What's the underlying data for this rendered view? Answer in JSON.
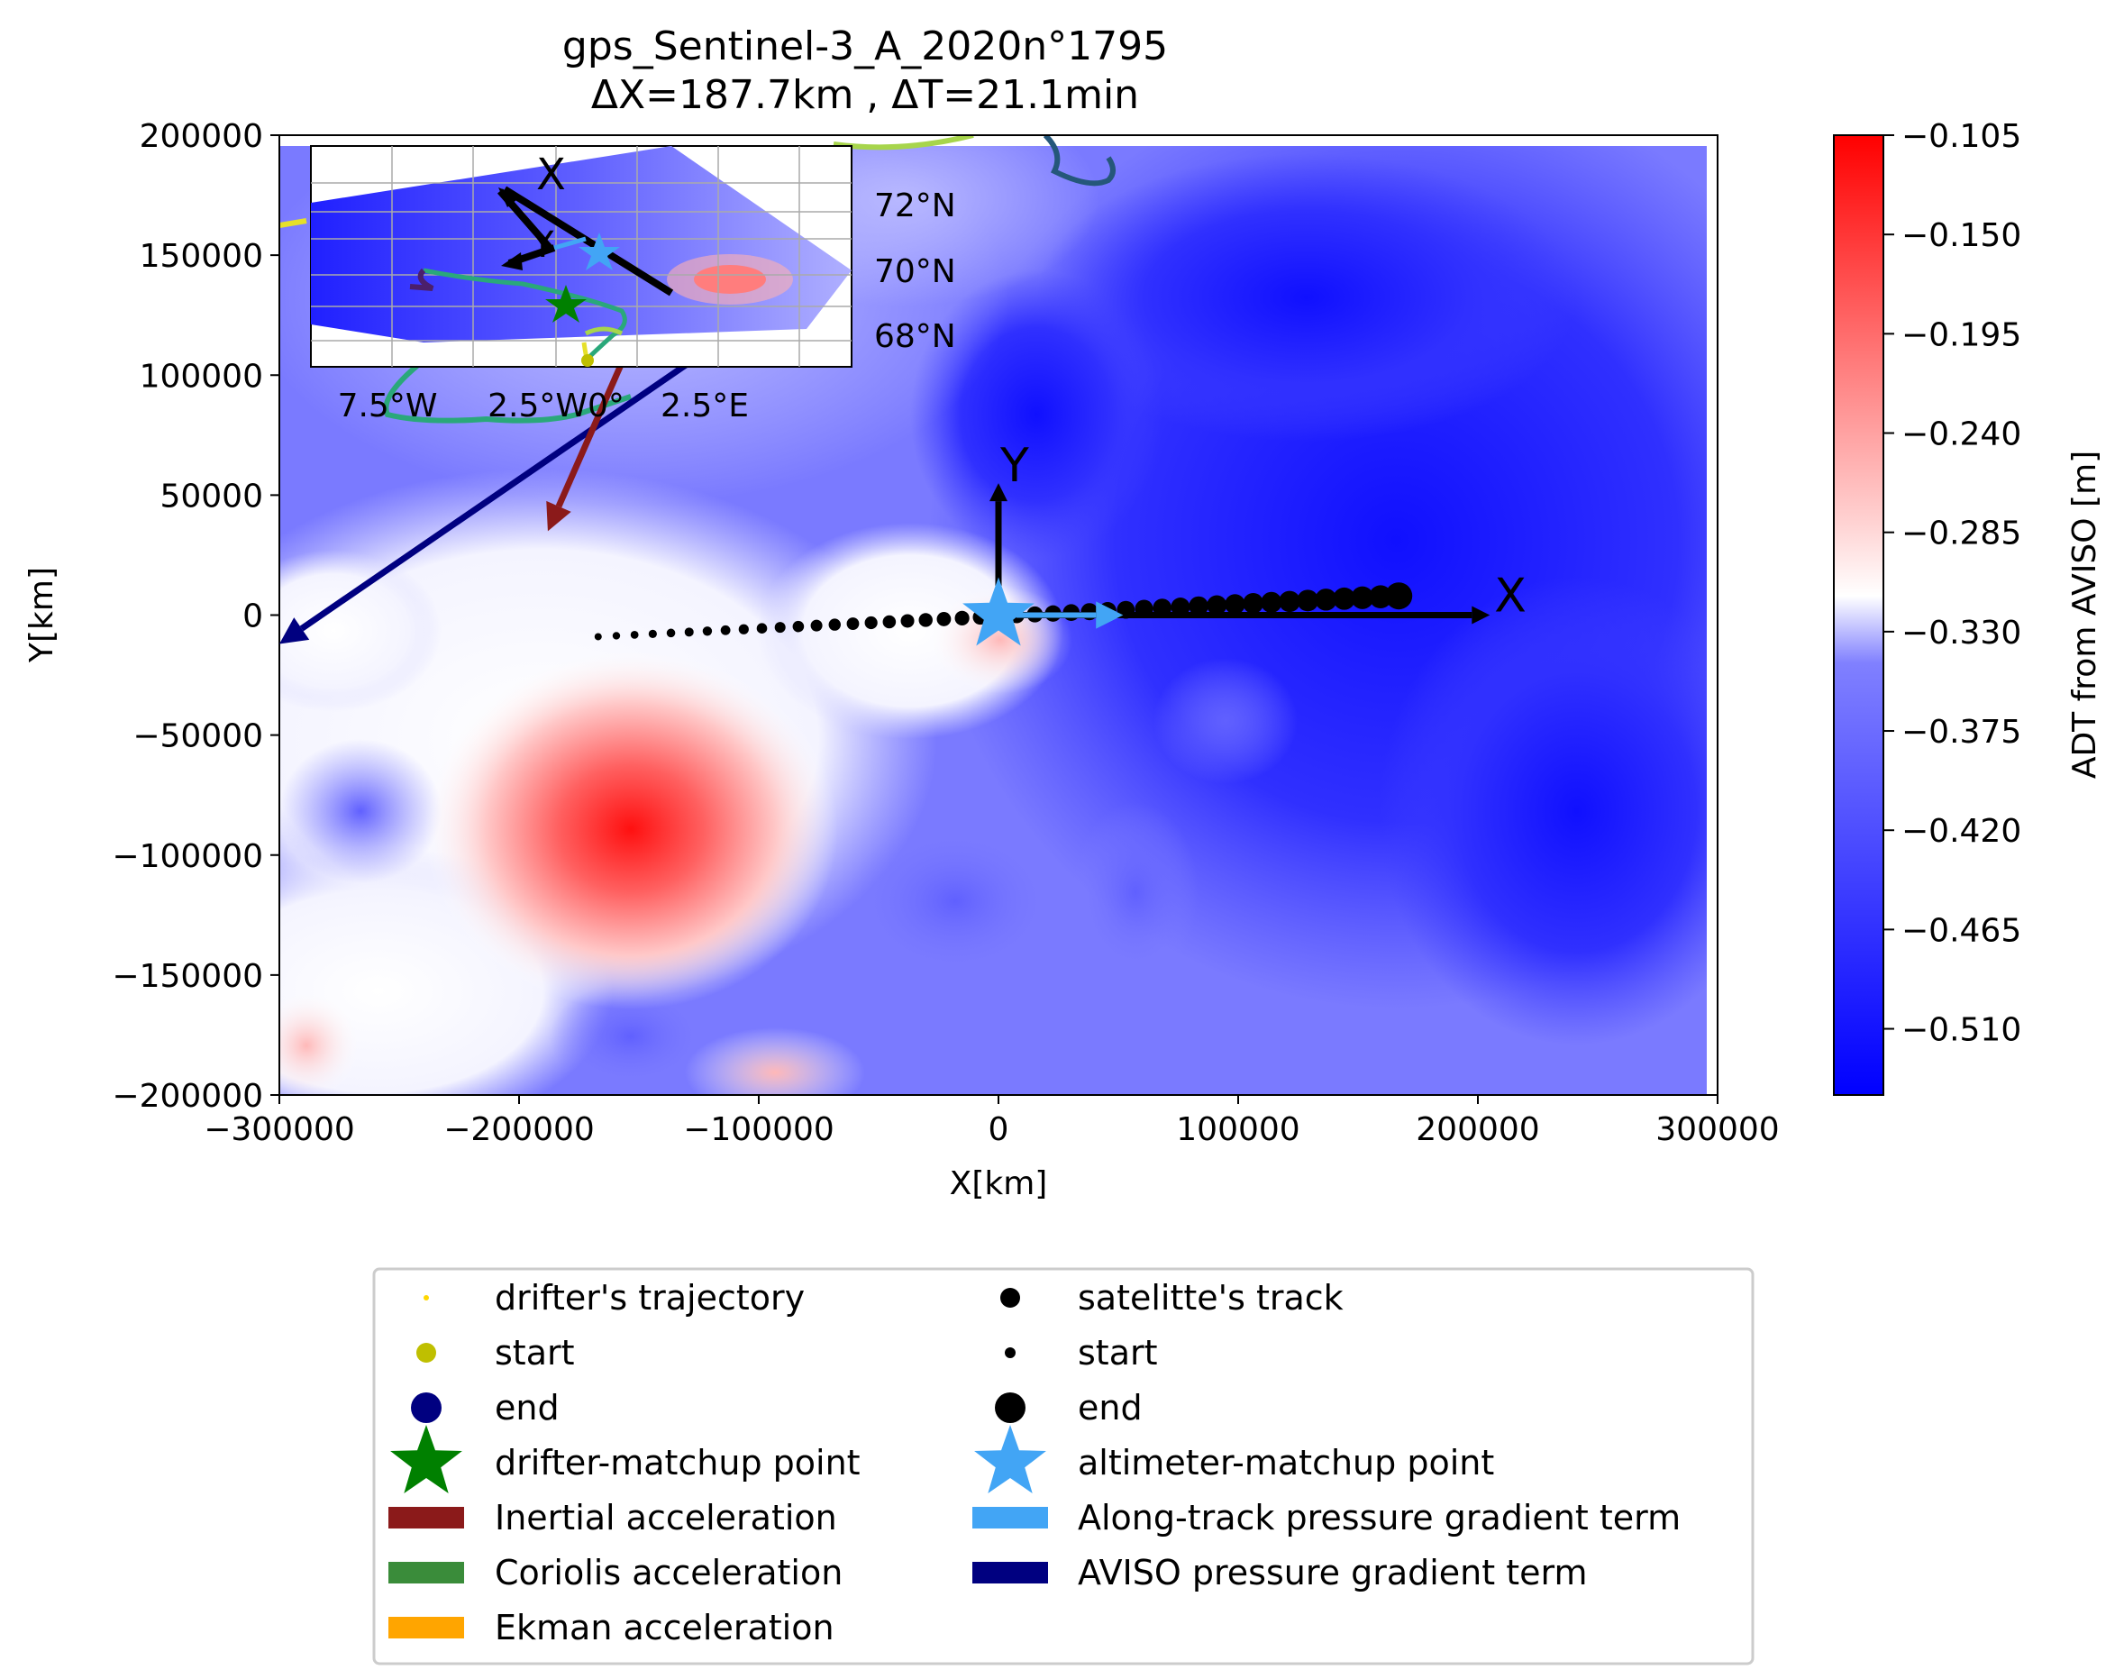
{
  "chart_data": {
    "type": "contour",
    "title": "gps_Sentinel-3_A_2020n°1795",
    "subtitle": "ΔX=187.7km , ΔT=21.1min",
    "xlabel": "X[km]",
    "ylabel": "Y[km]",
    "xlim": [
      -300000,
      300000
    ],
    "ylim": [
      -200000,
      200000
    ],
    "xticks": [
      "−300000",
      "−200000",
      "−100000",
      "0",
      "100000",
      "200000",
      "300000"
    ],
    "yticks": [
      "200000",
      "150000",
      "100000",
      "50000",
      "0",
      "−50000",
      "−100000",
      "−150000",
      "−200000"
    ],
    "colorbar": {
      "label": "ADT from AVISO [m]",
      "range": [
        -0.54,
        -0.105
      ],
      "ticks": [
        "−0.105",
        "−0.150",
        "−0.195",
        "−0.240",
        "−0.285",
        "−0.330",
        "−0.375",
        "−0.420",
        "−0.465",
        "−0.510"
      ],
      "colors": {
        "low": "#0000ff",
        "mid": "#ffffff",
        "high": "#ff0000"
      }
    },
    "features": {
      "warm_eddy_center": {
        "x": -150000,
        "y": -95000
      },
      "small_warm_patch_center": {
        "x": 5000,
        "y": -15000
      },
      "cold_core": {
        "x": 200000,
        "y": 50000
      }
    },
    "satellite_track": {
      "start": {
        "x": -167000,
        "y": -9000
      },
      "end": {
        "x": 167000,
        "y": 8000
      },
      "n_points": 45
    },
    "axes_arrows": {
      "origin": {
        "x": 0,
        "y": 0
      },
      "x_end": {
        "x": 205000,
        "y": 0
      },
      "y_end": {
        "x": 0,
        "y": 55000
      },
      "x_label": "X",
      "y_label": "Y"
    },
    "altimeter_matchup": {
      "x": 0,
      "y": 0
    },
    "vectors": [
      {
        "name": "Along-track pressure gradient term",
        "color": "#42a5f5",
        "from": {
          "x": 0,
          "y": 0
        },
        "to": {
          "x": 52000,
          "y": 0
        }
      },
      {
        "name": "AVISO pressure gradient term",
        "color": "#000080",
        "from": {
          "x": -122000,
          "y": 110000
        },
        "to": {
          "x": -300000,
          "y": -12000
        }
      },
      {
        "name": "Inertial acceleration",
        "color": "#8b1a1a",
        "from": {
          "x": -155000,
          "y": 110000
        },
        "to": {
          "x": -188000,
          "y": 35000
        }
      }
    ],
    "inset": {
      "lat_labels": [
        "72°N",
        "70°N",
        "68°N"
      ],
      "lon_labels": [
        "7.5°W",
        "2.5°W0°",
        "2.5°E"
      ],
      "axis_x_label": "X",
      "axis_y_label": "Y"
    },
    "legend": {
      "placement": "below",
      "left": [
        {
          "label": "drifter's trajectory",
          "marker": "tinydot",
          "color": "#ffd700"
        },
        {
          "label": "start",
          "marker": "dot",
          "color": "#bfbf00"
        },
        {
          "label": "end",
          "marker": "bigdot",
          "color": "#000080"
        },
        {
          "label": "drifter-matchup point",
          "marker": "star",
          "color": "#008000"
        },
        {
          "label": "Inertial acceleration",
          "marker": "rect",
          "color": "#8b1a1a"
        },
        {
          "label": "Coriolis acceleration",
          "marker": "rect",
          "color": "#3a8c3a"
        },
        {
          "label": "Ekman acceleration",
          "marker": "rect",
          "color": "#ffa500"
        }
      ],
      "right": [
        {
          "label": "satelitte's track",
          "marker": "dot",
          "color": "#000000"
        },
        {
          "label": "start",
          "marker": "smalldot",
          "color": "#000000"
        },
        {
          "label": "end",
          "marker": "bigdot",
          "color": "#000000"
        },
        {
          "label": "altimeter-matchup point",
          "marker": "star",
          "color": "#42a5f5"
        },
        {
          "label": "Along-track pressure gradient term",
          "marker": "rect",
          "color": "#42a5f5"
        },
        {
          "label": "AVISO pressure gradient term",
          "marker": "rect",
          "color": "#000080"
        }
      ]
    }
  }
}
